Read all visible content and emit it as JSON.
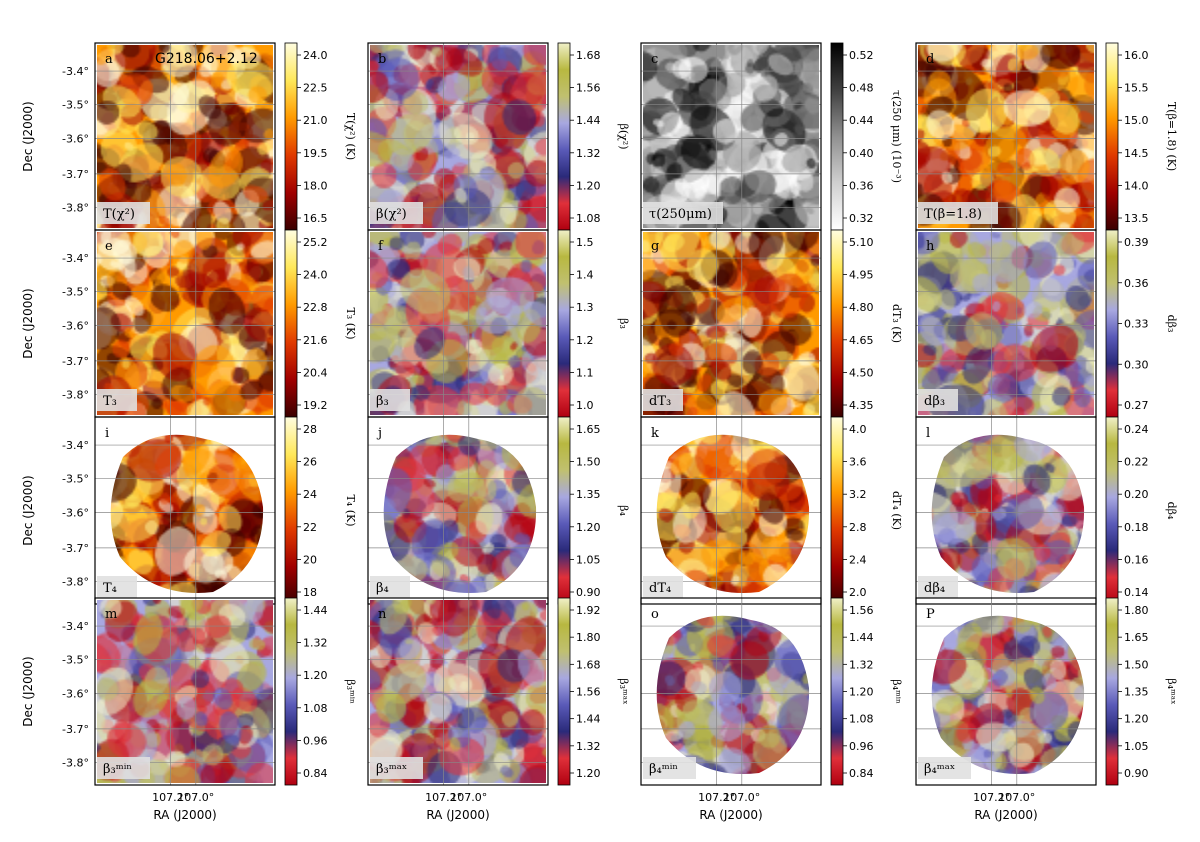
{
  "figure": {
    "axis_labels": {
      "ra": "RA (J2000)",
      "dec": "Dec (J2000)"
    },
    "ra_ticks": [
      "107.2°",
      "107.0°"
    ],
    "dec_ticks": [
      "-3.4°",
      "-3.5°",
      "-3.6°",
      "-3.7°",
      "-3.8°"
    ],
    "field_name": "G218.06+2.12"
  },
  "chart_data": [
    {
      "type": "heatmap",
      "letter": "a",
      "tag": "T(χ²)",
      "unit_label": "T(χ²) (K)",
      "cmap": "hot",
      "ticks": [
        "24.0",
        "22.5",
        "21.0",
        "19.5",
        "18.0",
        "16.5"
      ],
      "range": [
        15.8,
        25.2
      ],
      "contours": true
    },
    {
      "type": "heatmap",
      "letter": "b",
      "tag": "β(χ²)",
      "unit_label": "β(χ²)",
      "cmap": "beta",
      "ticks": [
        "1.68",
        "1.56",
        "1.44",
        "1.32",
        "1.20",
        "1.08"
      ],
      "range": [
        0.98,
        1.72
      ],
      "contours": true
    },
    {
      "type": "heatmap",
      "letter": "c",
      "tag": "τ(250μm)",
      "unit_label": "τ(250 μm) (10⁻³)",
      "cmap": "gray",
      "ticks": [
        "0.52",
        "0.48",
        "0.44",
        "0.40",
        "0.36",
        "0.32"
      ],
      "range": [
        0.29,
        0.54
      ],
      "contours": false
    },
    {
      "type": "heatmap",
      "letter": "d",
      "tag": "T(β=1.8)",
      "unit_label": "T(β=1.8) (K)",
      "cmap": "hot",
      "ticks": [
        "16.0",
        "15.5",
        "15.0",
        "14.5",
        "14.0",
        "13.5"
      ],
      "range": [
        13.1,
        16.0
      ],
      "contours": true
    },
    {
      "type": "heatmap",
      "letter": "e",
      "tag": "T₃",
      "unit_label": "T₃ (K)",
      "cmap": "hot",
      "ticks": [
        "25.2",
        "24.0",
        "22.8",
        "21.6",
        "20.4",
        "19.2"
      ],
      "range": [
        18.5,
        26.0
      ],
      "contours": true
    },
    {
      "type": "heatmap",
      "letter": "f",
      "tag": "β₃",
      "unit_label": "β₃",
      "cmap": "beta",
      "ticks": [
        "1.5",
        "1.4",
        "1.3",
        "1.2",
        "1.1",
        "1.0"
      ],
      "range": [
        0.94,
        1.55
      ],
      "contours": true
    },
    {
      "type": "heatmap",
      "letter": "g",
      "tag": "dT₃",
      "unit_label": "dT₃ (K)",
      "cmap": "hot",
      "ticks": [
        "5.10",
        "4.95",
        "4.80",
        "4.65",
        "4.50",
        "4.35"
      ],
      "range": [
        4.32,
        5.2
      ],
      "contours": false
    },
    {
      "type": "heatmap",
      "letter": "h",
      "tag": "dβ₃",
      "unit_label": "dβ₃",
      "cmap": "beta",
      "ticks": [
        "0.39",
        "0.36",
        "0.33",
        "0.30",
        "0.27"
      ],
      "range": [
        0.26,
        0.405
      ],
      "contours": true
    },
    {
      "type": "heatmap",
      "letter": "i",
      "tag": "T₄",
      "unit_label": "T₄ (K)",
      "cmap": "hot",
      "ticks": [
        "28",
        "26",
        "24",
        "22",
        "20",
        "18"
      ],
      "range": [
        16.5,
        29.5
      ],
      "contours": true
    },
    {
      "type": "heatmap",
      "letter": "j",
      "tag": "β₄",
      "unit_label": "β₄",
      "cmap": "beta",
      "ticks": [
        "1.65",
        "1.50",
        "1.35",
        "1.20",
        "1.05",
        "0.90"
      ],
      "range": [
        0.8,
        1.68
      ],
      "contours": true
    },
    {
      "type": "heatmap",
      "letter": "k",
      "tag": "dT₄",
      "unit_label": "dT₄ (K)",
      "cmap": "hot",
      "ticks": [
        "4.0",
        "3.6",
        "3.2",
        "2.8",
        "2.4",
        "2.0"
      ],
      "range": [
        1.7,
        4.0
      ],
      "contours": false
    },
    {
      "type": "heatmap",
      "letter": "l",
      "tag": "dβ₄",
      "unit_label": "dβ₄",
      "cmap": "beta",
      "ticks": [
        "0.24",
        "0.22",
        "0.20",
        "0.18",
        "0.16",
        "0.14"
      ],
      "range": [
        0.13,
        0.245
      ],
      "contours": false
    },
    {
      "type": "heatmap",
      "letter": "m",
      "tag": "β₃ᵐⁱⁿ",
      "unit_label": "β₃ᵐⁱⁿ",
      "cmap": "beta",
      "ticks": [
        "1.44",
        "1.32",
        "1.20",
        "1.08",
        "0.96",
        "0.84"
      ],
      "range": [
        0.78,
        1.52
      ],
      "contours": true
    },
    {
      "type": "heatmap",
      "letter": "n",
      "tag": "β₃ᵐᵃˣ",
      "unit_label": "β₃ᵐᵃˣ",
      "cmap": "beta",
      "ticks": [
        "1.92",
        "1.80",
        "1.68",
        "1.56",
        "1.44",
        "1.32",
        "1.20"
      ],
      "range": [
        1.14,
        1.95
      ],
      "contours": true
    },
    {
      "type": "heatmap",
      "letter": "o",
      "tag": "β₄ᵐⁱⁿ",
      "unit_label": "β₄ᵐⁱⁿ",
      "cmap": "beta",
      "ticks": [
        "1.56",
        "1.44",
        "1.32",
        "1.20",
        "1.08",
        "0.96",
        "0.84"
      ],
      "range": [
        0.78,
        1.58
      ],
      "contours": true
    },
    {
      "type": "heatmap",
      "letter": "P",
      "tag": "β₄ᵐᵃˣ",
      "unit_label": "β₄ᵐᵃˣ",
      "cmap": "beta",
      "ticks": [
        "1.80",
        "1.65",
        "1.50",
        "1.35",
        "1.20",
        "1.05",
        "0.90"
      ],
      "range": [
        0.82,
        1.82
      ],
      "contours": true
    }
  ]
}
